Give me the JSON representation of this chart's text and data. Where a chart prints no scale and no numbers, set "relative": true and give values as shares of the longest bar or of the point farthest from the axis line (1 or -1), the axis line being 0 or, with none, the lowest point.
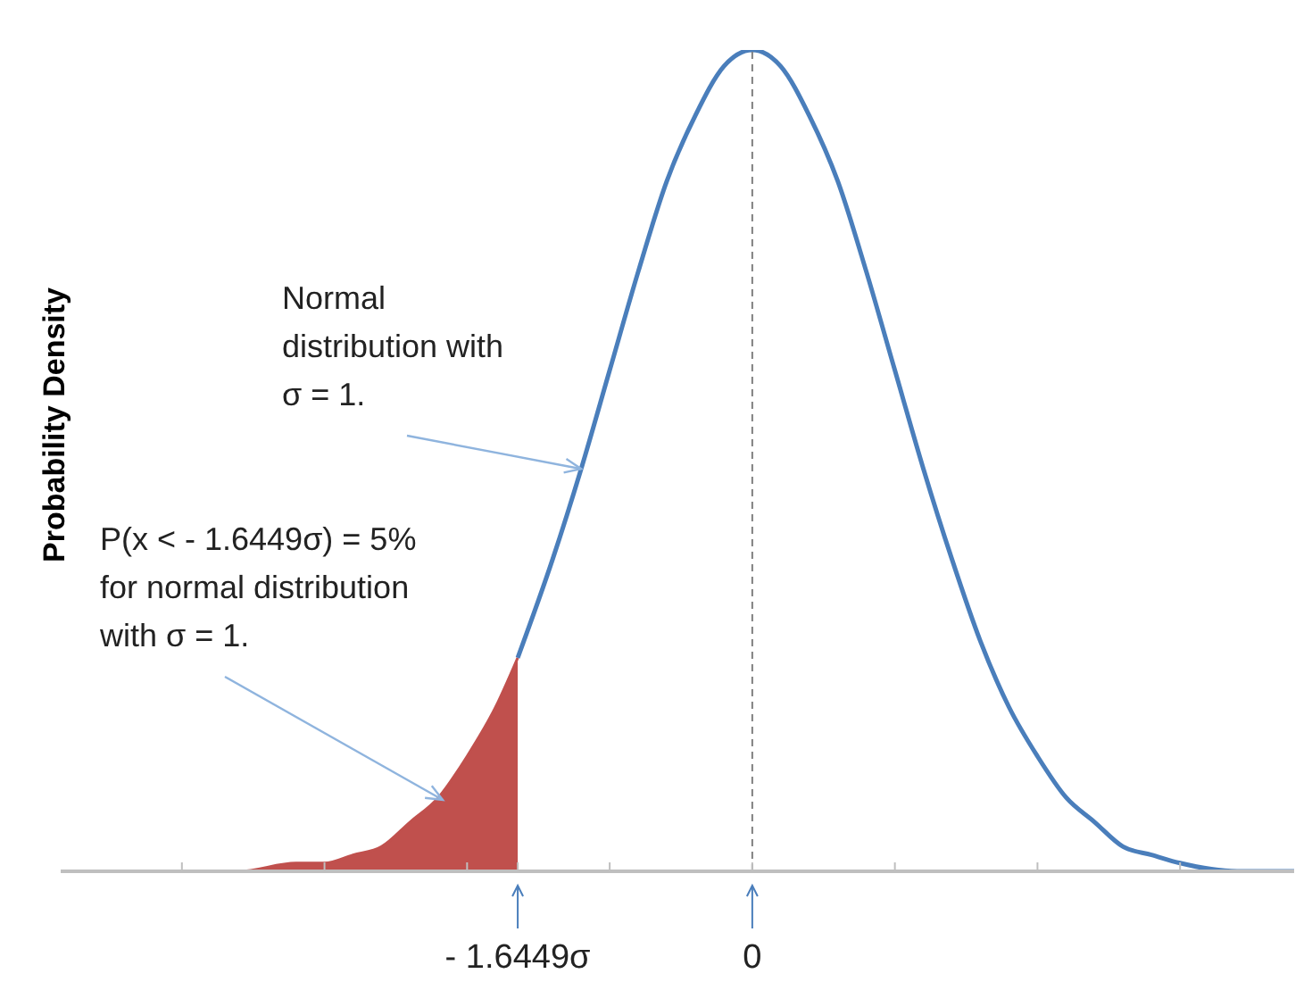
{
  "chart_data": {
    "type": "line",
    "relative": true,
    "ylabel": "Probability Density",
    "xlim": [
      -4.85,
      3.8
    ],
    "xticks": [
      {
        "value": -4,
        "label": null
      },
      {
        "value": -3,
        "label": null
      },
      {
        "value": -2,
        "label": null
      },
      {
        "value": -1.6449,
        "label": "- 1.6449σ"
      },
      {
        "value": -1,
        "label": null
      },
      {
        "value": 0,
        "label": "0"
      },
      {
        "value": 1,
        "label": null
      },
      {
        "value": 2,
        "label": null
      },
      {
        "value": 3,
        "label": null
      }
    ],
    "series": [
      {
        "type": "area",
        "color": "#c0504d",
        "x": [
          -4.85,
          -4.0,
          -3.6,
          -3.2,
          -3.0,
          -2.8,
          -2.6,
          -2.4,
          -2.2,
          -2.0,
          -1.8,
          -1.6449
        ],
        "values": [
          0,
          0,
          0,
          0.01,
          0.01,
          0.02,
          0.03,
          0.06,
          0.09,
          0.14,
          0.2,
          0.26
        ]
      },
      {
        "color": "#4a7ebb",
        "x": [
          -1.6449,
          -1.4,
          -1.2,
          -1.0,
          -0.8,
          -0.6,
          -0.4,
          -0.2,
          0,
          0.2,
          0.4,
          0.6,
          0.8,
          1.0,
          1.2,
          1.4,
          1.6,
          1.8,
          2.0,
          2.2,
          2.4,
          2.6,
          2.8,
          3.0,
          3.4,
          3.8
        ],
        "values": [
          0.26,
          0.38,
          0.49,
          0.61,
          0.73,
          0.84,
          0.92,
          0.98,
          1,
          0.98,
          0.92,
          0.84,
          0.73,
          0.61,
          0.49,
          0.38,
          0.28,
          0.2,
          0.14,
          0.09,
          0.06,
          0.03,
          0.02,
          0.01,
          0,
          0
        ]
      }
    ],
    "ref_lines": [
      {
        "axis": "x",
        "value": 0,
        "color": "#808080",
        "line_style": "dashed"
      }
    ],
    "annotations": [
      {
        "text": "Normal\ndistribution with\nσ = 1.",
        "x": -1.2,
        "y": 0.49
      },
      "P(x < - 1.6449σ) = 5%\nfor normal distribution\nwith σ = 1."
    ],
    "marker": "none",
    "line_style": "solid"
  }
}
